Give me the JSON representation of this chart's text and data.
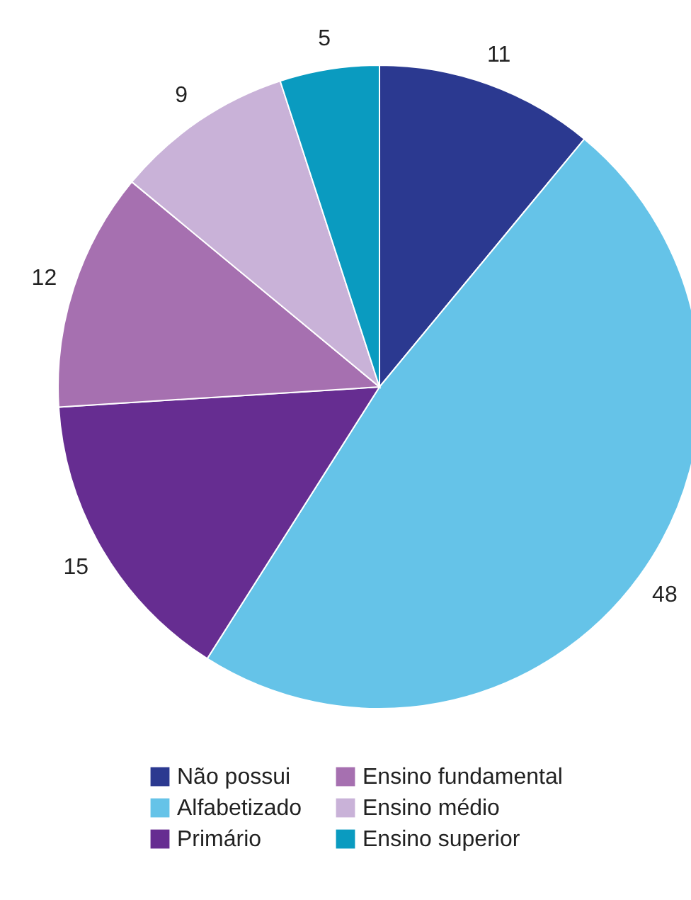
{
  "chart_data": {
    "type": "pie",
    "categories": [
      "Não possui",
      "Alfabetizado",
      "Primário",
      "Ensino fundamental",
      "Ensino médio",
      "Ensino superior"
    ],
    "values": [
      11,
      48,
      15,
      12,
      9,
      5
    ],
    "colors": [
      "#2b3990",
      "#65c3e8",
      "#662d91",
      "#a670b0",
      "#c9b2d8",
      "#0a9bc0"
    ],
    "data_labels": true,
    "legend": "bottom"
  }
}
